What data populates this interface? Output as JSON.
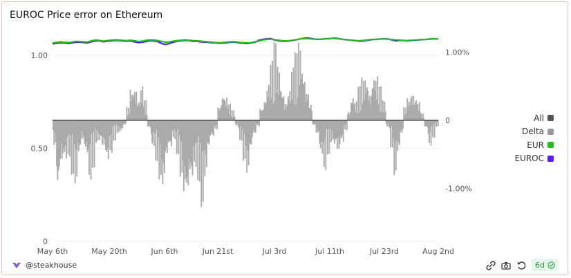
{
  "header": {
    "title": "EUROC Price error on Ethereum"
  },
  "legend": [
    {
      "label": "All",
      "color": "#555555"
    },
    {
      "label": "Delta",
      "color": "#999999"
    },
    {
      "label": "EUR",
      "color": "#22bb22"
    },
    {
      "label": "EUROC",
      "color": "#5a1ef0"
    }
  ],
  "footer": {
    "handle": "@steakhouse",
    "badge": "6d"
  },
  "icons": {
    "brand": "steakhouse-logo-icon",
    "share": "share-icon",
    "camera": "camera-icon",
    "refresh": "refresh-icon",
    "check": "check-circle-icon"
  },
  "chart_data": {
    "type": "area",
    "title": "EUROC Price error on Ethereum",
    "x_tick_labels": [
      "May 6th",
      "May 20th",
      "Jun 6th",
      "Jun 21st",
      "Jul 3rd",
      "Jul 11th",
      "Jul 23rd",
      "Aug 2nd"
    ],
    "left_axis": {
      "ticks": [
        1.0,
        0.5,
        0
      ],
      "tick_labels": [
        "1.00",
        "0.50",
        "0"
      ],
      "ylim": [
        0,
        1.1
      ]
    },
    "right_axis": {
      "ticks": [
        0.01,
        0,
        -0.01
      ],
      "tick_labels": [
        "1.00%",
        "0",
        "-1.00%"
      ],
      "ylim": [
        -0.0178,
        0.0123
      ]
    },
    "grid": true,
    "legend_position": "right",
    "series": [
      {
        "name": "Delta",
        "axis": "right",
        "color": "#aaaaaa",
        "points_per_segment": 4,
        "segment_extremes": [
          [
            0.0,
            -0.004
          ],
          [
            0.0,
            -0.013
          ],
          [
            0.0,
            -0.0095
          ],
          [
            0.0,
            -0.007
          ],
          [
            0.0,
            -0.0055
          ],
          [
            0.0,
            -0.008
          ],
          [
            0.0,
            -0.01
          ],
          [
            0.0,
            -0.0065
          ],
          [
            0.0,
            -0.0045
          ],
          [
            0.0,
            -0.006
          ],
          [
            0.0,
            -0.009
          ],
          [
            0.0,
            -0.007
          ],
          [
            0.0,
            -0.0035
          ],
          [
            0.0,
            -0.004
          ],
          [
            0.0,
            -0.006
          ],
          [
            0.0,
            -0.0075
          ],
          [
            0.0,
            -0.005
          ],
          [
            0.0,
            -0.003
          ],
          [
            0.0,
            -0.002
          ],
          [
            0.0,
            -0.002
          ],
          [
            0.0,
            -0.001
          ],
          [
            0.002,
            0.0
          ],
          [
            0.0055,
            0.0
          ],
          [
            0.007,
            0.0
          ],
          [
            0.004,
            0.0
          ],
          [
            0.0055,
            0.0
          ],
          [
            0.003,
            0.0
          ],
          [
            0.0,
            -0.0015
          ],
          [
            0.0,
            -0.004
          ],
          [
            0.0,
            -0.006
          ],
          [
            0.0,
            -0.009
          ],
          [
            0.0,
            -0.012
          ],
          [
            0.0,
            -0.008
          ],
          [
            0.0,
            -0.0055
          ],
          [
            0.0,
            -0.003
          ],
          [
            0.0,
            -0.005
          ],
          [
            0.0,
            -0.0085
          ],
          [
            0.0,
            -0.013
          ],
          [
            0.0,
            -0.016
          ],
          [
            0.0,
            -0.012
          ],
          [
            0.0,
            -0.0075
          ],
          [
            0.0,
            -0.009
          ],
          [
            0.0,
            -0.013
          ],
          [
            0.0,
            -0.01
          ],
          [
            0.0,
            -0.006
          ],
          [
            0.0,
            -0.0035
          ],
          [
            0.0,
            -0.0015
          ],
          [
            0.003,
            0.0
          ],
          [
            0.0055,
            0.0
          ],
          [
            0.004,
            0.0
          ],
          [
            0.0025,
            0.0
          ],
          [
            0.0015,
            0.0
          ],
          [
            0.0,
            -0.001
          ],
          [
            0.0,
            -0.003
          ],
          [
            0.0,
            -0.006
          ],
          [
            0.0,
            -0.009
          ],
          [
            0.0,
            -0.006
          ],
          [
            0.0,
            -0.003
          ],
          [
            0.0,
            -0.001
          ],
          [
            0.0025,
            0.0
          ],
          [
            0.0045,
            0.0
          ],
          [
            0.0065,
            0.0
          ],
          [
            0.009,
            0.0
          ],
          [
            0.0115,
            0.0
          ],
          [
            0.0085,
            0.0
          ],
          [
            0.006,
            0.0
          ],
          [
            0.004,
            0.0
          ],
          [
            0.0055,
            0.0
          ],
          [
            0.008,
            0.0
          ],
          [
            0.01,
            0.0
          ],
          [
            0.0122,
            0.0
          ],
          [
            0.0095,
            0.0
          ],
          [
            0.0065,
            0.0
          ],
          [
            0.003,
            0.0
          ],
          [
            0.0,
            -0.001
          ],
          [
            0.0,
            -0.003
          ],
          [
            0.0,
            -0.006
          ],
          [
            0.0,
            -0.0075
          ],
          [
            0.0,
            -0.005
          ],
          [
            0.0,
            -0.0035
          ],
          [
            0.0,
            -0.005
          ],
          [
            0.0,
            -0.007
          ],
          [
            0.0,
            -0.004
          ],
          [
            0.0,
            -0.0015
          ],
          [
            0.002,
            0.0
          ],
          [
            0.0045,
            0.0
          ],
          [
            0.003,
            0.0
          ],
          [
            0.005,
            0.0
          ],
          [
            0.0065,
            0.0
          ],
          [
            0.0075,
            0.0
          ],
          [
            0.006,
            0.0
          ],
          [
            0.0085,
            0.0
          ],
          [
            0.007,
            0.0
          ],
          [
            0.005,
            0.0
          ],
          [
            0.003,
            0.0
          ],
          [
            0.0,
            -0.001
          ],
          [
            0.0,
            -0.004
          ],
          [
            0.0,
            -0.0085
          ],
          [
            0.0,
            -0.006
          ],
          [
            0.0,
            -0.003
          ],
          [
            0.002,
            0.0
          ],
          [
            0.004,
            0.0
          ],
          [
            0.006,
            0.0
          ],
          [
            0.0045,
            0.0
          ],
          [
            0.003,
            0.0
          ],
          [
            0.001,
            0.0
          ],
          [
            0.0,
            -0.0015
          ],
          [
            0.0,
            -0.004
          ],
          [
            0.0,
            -0.0025
          ],
          [
            0.0,
            -0.001
          ]
        ]
      },
      {
        "name": "EUR",
        "axis": "left",
        "color": "#22bb22",
        "values": [
          1.066,
          1.069,
          1.072,
          1.07,
          1.068,
          1.071,
          1.075,
          1.074,
          1.072,
          1.071,
          1.078,
          1.082,
          1.08,
          1.076,
          1.079,
          1.081,
          1.083,
          1.082,
          1.08,
          1.079,
          1.081,
          1.078,
          1.074,
          1.076,
          1.08,
          1.083,
          1.082,
          1.079,
          1.074,
          1.07,
          1.072,
          1.076,
          1.079,
          1.081,
          1.083,
          1.081,
          1.079,
          1.078,
          1.076,
          1.074,
          1.072,
          1.07,
          1.068,
          1.067,
          1.069,
          1.071,
          1.073,
          1.072,
          1.069,
          1.067,
          1.066,
          1.068,
          1.072,
          1.077,
          1.082,
          1.085,
          1.087,
          1.084,
          1.081,
          1.078,
          1.077,
          1.079,
          1.082,
          1.086,
          1.089,
          1.09,
          1.088,
          1.087,
          1.086,
          1.087,
          1.089,
          1.09,
          1.091,
          1.089,
          1.087,
          1.085,
          1.083,
          1.081,
          1.079,
          1.078,
          1.08,
          1.083,
          1.085,
          1.086,
          1.087,
          1.088,
          1.087,
          1.085,
          1.083,
          1.082,
          1.08,
          1.079,
          1.081,
          1.082,
          1.084,
          1.085,
          1.086,
          1.088,
          1.089,
          1.088
        ]
      },
      {
        "name": "EUROC",
        "axis": "left",
        "color": "#5a1ef0",
        "values": [
          1.061,
          1.064,
          1.067,
          1.066,
          1.063,
          1.066,
          1.07,
          1.071,
          1.068,
          1.066,
          1.073,
          1.077,
          1.078,
          1.072,
          1.075,
          1.077,
          1.08,
          1.079,
          1.077,
          1.076,
          1.077,
          1.072,
          1.068,
          1.07,
          1.074,
          1.078,
          1.077,
          1.074,
          1.063,
          1.058,
          1.063,
          1.07,
          1.075,
          1.078,
          1.08,
          1.079,
          1.075,
          1.075,
          1.072,
          1.071,
          1.069,
          1.067,
          1.066,
          1.064,
          1.066,
          1.068,
          1.071,
          1.07,
          1.066,
          1.064,
          1.063,
          1.066,
          1.07,
          1.081,
          1.086,
          1.088,
          1.09,
          1.082,
          1.078,
          1.075,
          1.075,
          1.078,
          1.081,
          1.085,
          1.09,
          1.093,
          1.091,
          1.088,
          1.085,
          1.086,
          1.088,
          1.089,
          1.092,
          1.091,
          1.087,
          1.084,
          1.082,
          1.08,
          1.078,
          1.075,
          1.077,
          1.081,
          1.084,
          1.085,
          1.087,
          1.089,
          1.088,
          1.083,
          1.077,
          1.08,
          1.079,
          1.077,
          1.08,
          1.081,
          1.083,
          1.084,
          1.085,
          1.087,
          1.089,
          1.087
        ]
      }
    ]
  }
}
